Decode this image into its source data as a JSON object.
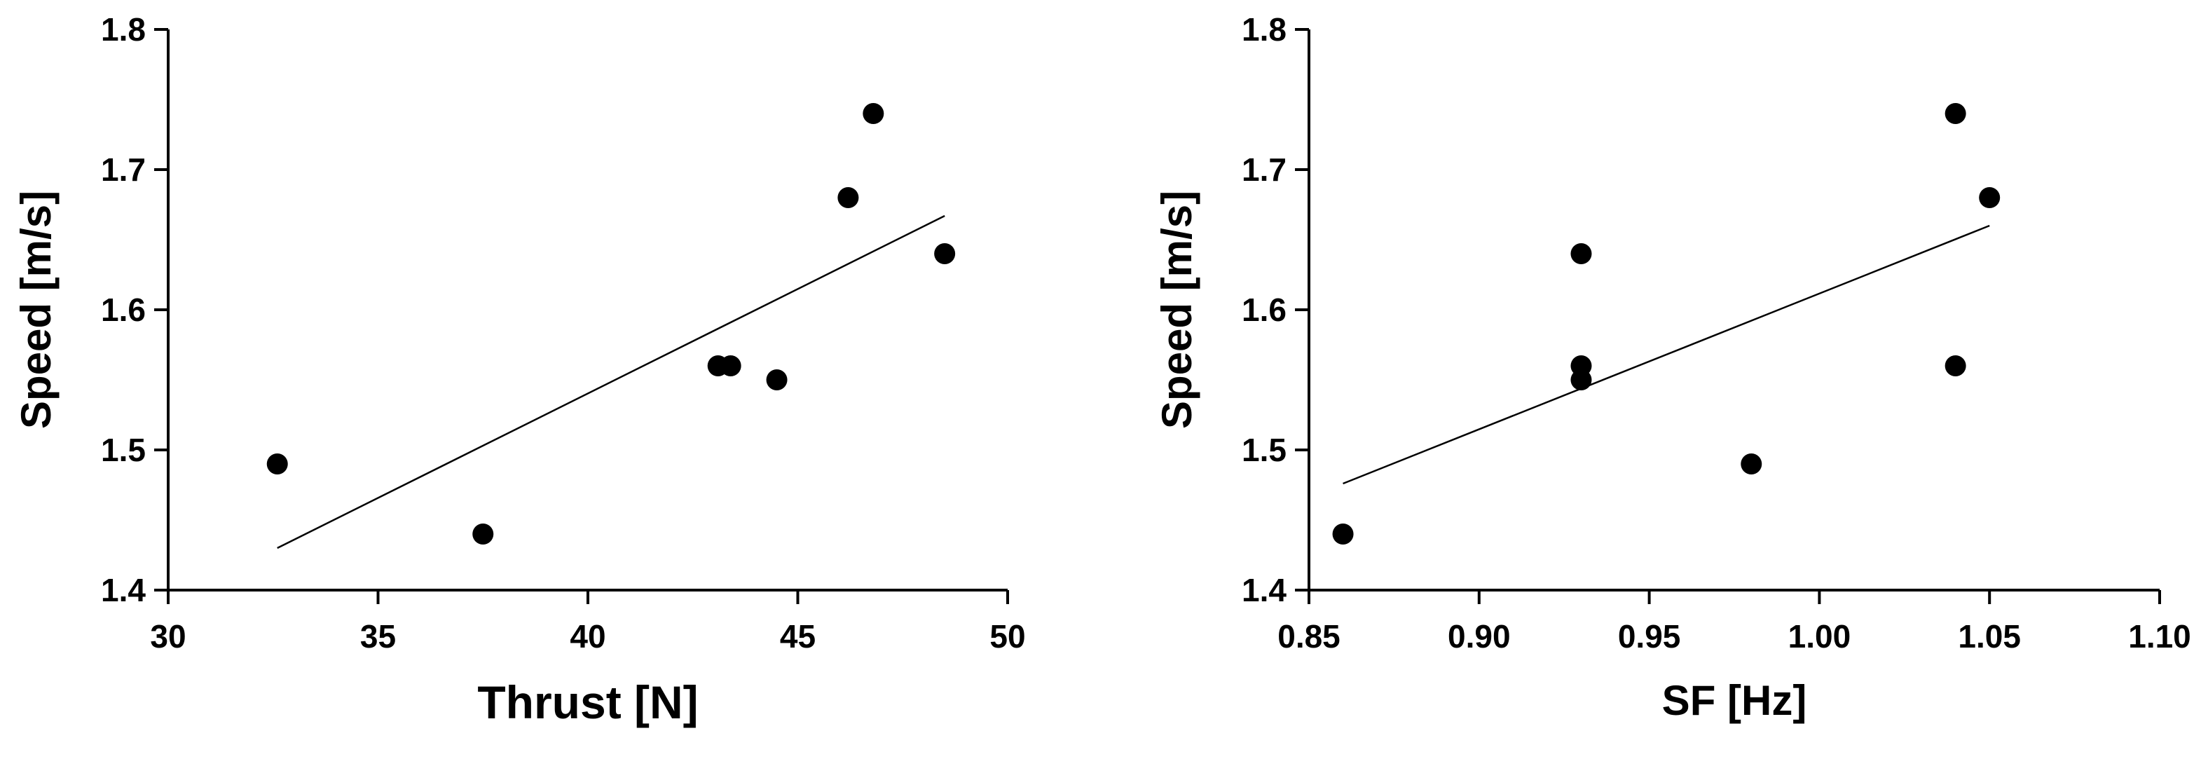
{
  "chart_data": [
    {
      "type": "scatter",
      "title": "",
      "xlabel": "Thrust  [N]",
      "ylabel": "Speed  [m/s]",
      "xlim": [
        30,
        50
      ],
      "ylim": [
        1.4,
        1.8
      ],
      "x_ticks": [
        "30",
        "35",
        "40",
        "45",
        "50"
      ],
      "y_ticks": [
        "1.4",
        "1.5",
        "1.6",
        "1.7",
        "1.8"
      ],
      "x_tick_values": [
        30,
        35,
        40,
        45,
        50
      ],
      "y_tick_values": [
        1.4,
        1.5,
        1.6,
        1.7,
        1.8
      ],
      "grid": false,
      "points": [
        {
          "x": 32.6,
          "y": 1.49
        },
        {
          "x": 37.5,
          "y": 1.44
        },
        {
          "x": 43.1,
          "y": 1.56
        },
        {
          "x": 43.4,
          "y": 1.56
        },
        {
          "x": 44.5,
          "y": 1.55
        },
        {
          "x": 46.2,
          "y": 1.68
        },
        {
          "x": 46.8,
          "y": 1.74
        },
        {
          "x": 48.5,
          "y": 1.64
        }
      ],
      "fit_line": {
        "x": [
          32.6,
          48.5
        ],
        "y": [
          1.43,
          1.667
        ]
      }
    },
    {
      "type": "scatter",
      "title": "",
      "xlabel": "SF  [Hz]",
      "ylabel": "Speed  [m/s]",
      "xlim": [
        0.85,
        1.1
      ],
      "ylim": [
        1.4,
        1.8
      ],
      "x_ticks": [
        "0.85",
        "0.90",
        "0.95",
        "1.00",
        "1.05",
        "1.10"
      ],
      "y_ticks": [
        "1.4",
        "1.5",
        "1.6",
        "1.7",
        "1.8"
      ],
      "x_tick_values": [
        0.85,
        0.9,
        0.95,
        1.0,
        1.05,
        1.1
      ],
      "y_tick_values": [
        1.4,
        1.5,
        1.6,
        1.7,
        1.8
      ],
      "grid": false,
      "points": [
        {
          "x": 0.86,
          "y": 1.44
        },
        {
          "x": 0.93,
          "y": 1.64
        },
        {
          "x": 0.93,
          "y": 1.56
        },
        {
          "x": 0.93,
          "y": 1.55
        },
        {
          "x": 0.98,
          "y": 1.49
        },
        {
          "x": 1.04,
          "y": 1.74
        },
        {
          "x": 1.04,
          "y": 1.56
        },
        {
          "x": 1.05,
          "y": 1.68
        }
      ],
      "fit_line": {
        "x": [
          0.86,
          1.05
        ],
        "y": [
          1.476,
          1.66
        ]
      }
    }
  ]
}
